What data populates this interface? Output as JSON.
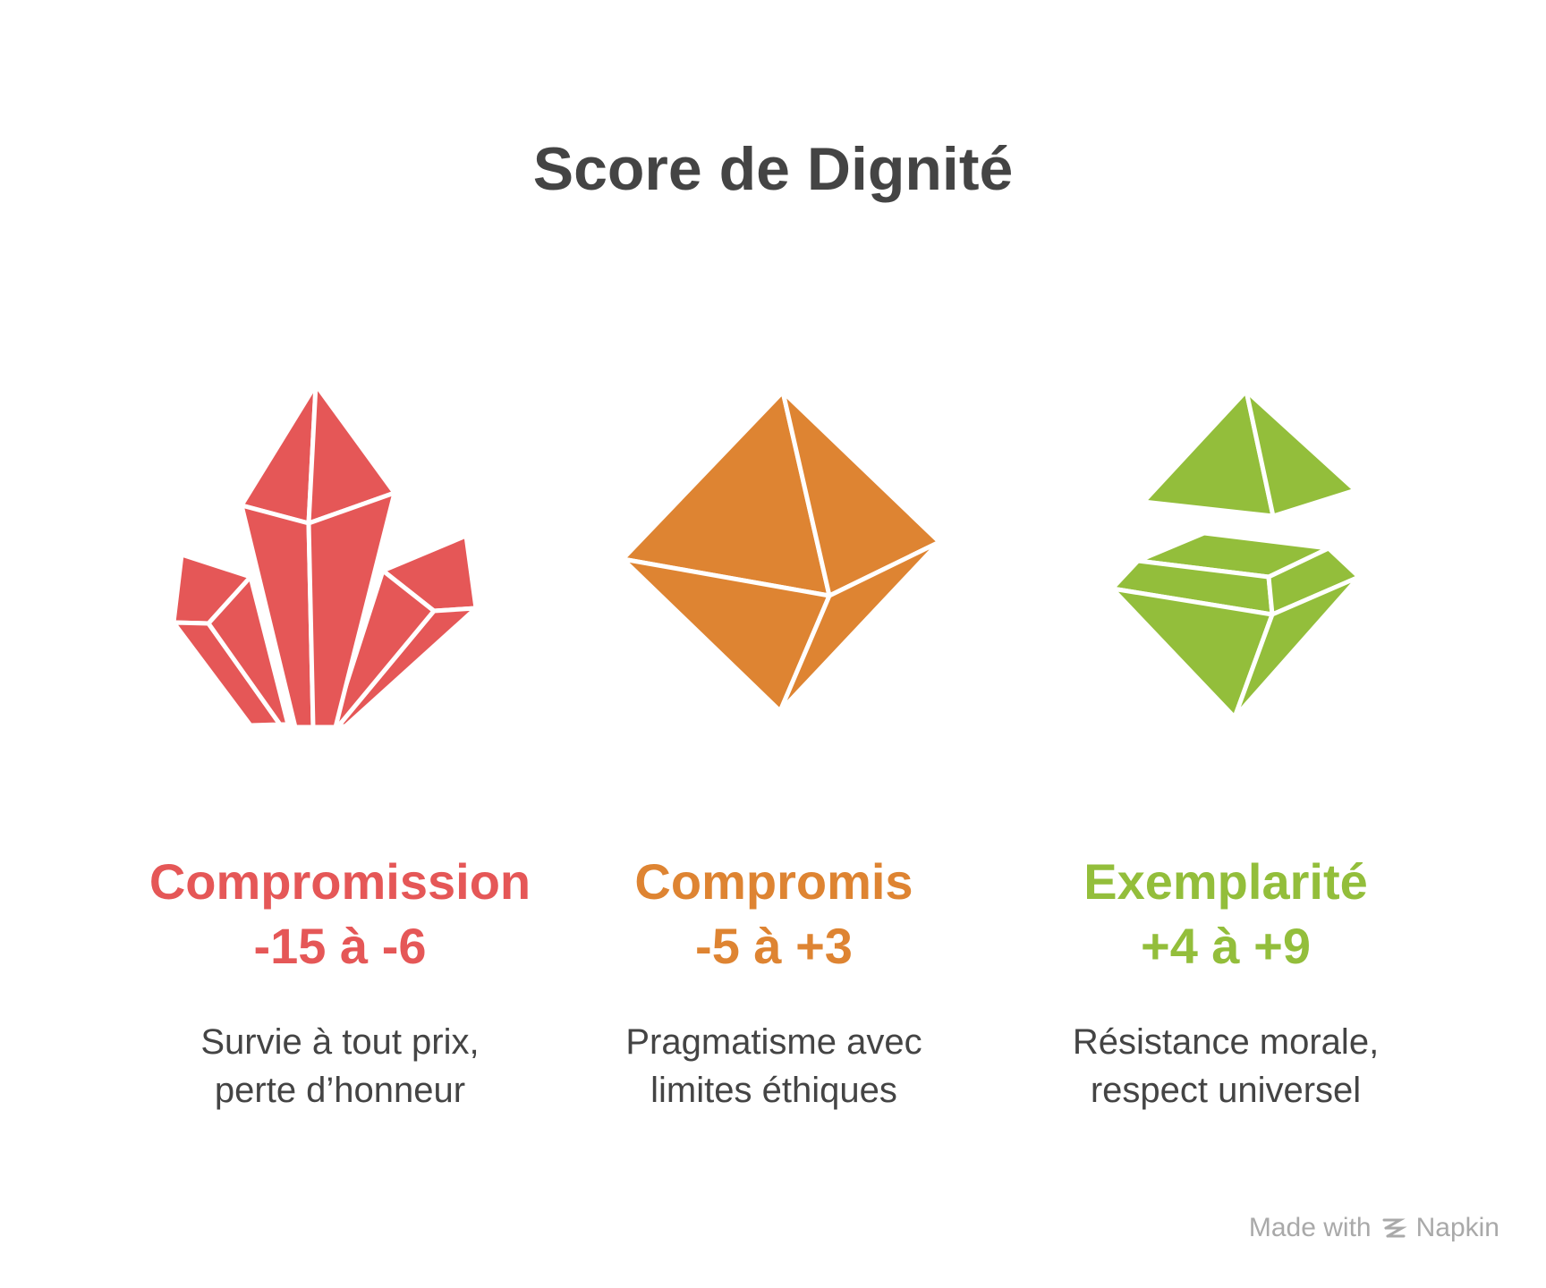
{
  "title": "Score de Dignité",
  "columns": [
    {
      "name": "Compromission",
      "range": "-15 à -6",
      "description_line1": "Survie à tout prix,",
      "description_line2": "perte d’honneur",
      "color": "#E55757",
      "icon": "crystal-cluster-icon"
    },
    {
      "name": "Compromis",
      "range": "-5 à +3",
      "description_line1": "Pragmatisme avec",
      "description_line2": "limites éthiques",
      "color": "#DE8432",
      "icon": "octahedron-icon"
    },
    {
      "name": "Exemplarité",
      "range": "+4 à +9",
      "description_line1": "Résistance morale,",
      "description_line2": "respect universel",
      "color": "#93BE3B",
      "icon": "split-gem-icon"
    }
  ],
  "footer": {
    "made_with": "Made with",
    "brand": "Napkin"
  }
}
